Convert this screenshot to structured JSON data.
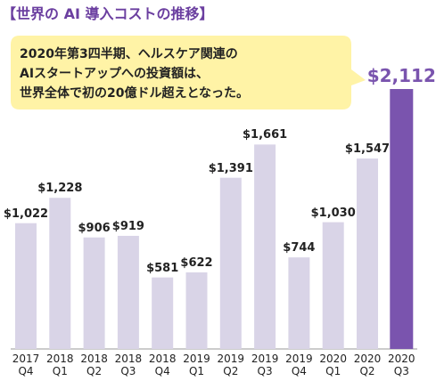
{
  "chart_data": {
    "type": "bar",
    "title": "【世界の AI 導入コストの推移】",
    "annotation": [
      "2020年第3四半期、ヘルスケア関連の",
      "AIスタートアップへの投資額は、",
      "世界全体で初の20億ドル超えとなった。"
    ],
    "categories": [
      "2017\nQ4",
      "2018\nQ1",
      "2018\nQ2",
      "2018\nQ3",
      "2018\nQ4",
      "2019\nQ1",
      "2019\nQ2",
      "2019\nQ3",
      "2019\nQ4",
      "2020\nQ1",
      "2020\nQ2",
      "2020\nQ3"
    ],
    "values": [
      1022,
      1228,
      906,
      919,
      581,
      622,
      1391,
      1661,
      744,
      1030,
      1547,
      2112
    ],
    "value_labels": [
      "$1,022",
      "$1,228",
      "$906",
      "$919",
      "$581",
      "$622",
      "$1,391",
      "$1,661",
      "$744",
      "$1,030",
      "$1,547",
      "$2,112"
    ],
    "color": "#d9d4e7",
    "highlight_color": "#7a54ae"
  }
}
